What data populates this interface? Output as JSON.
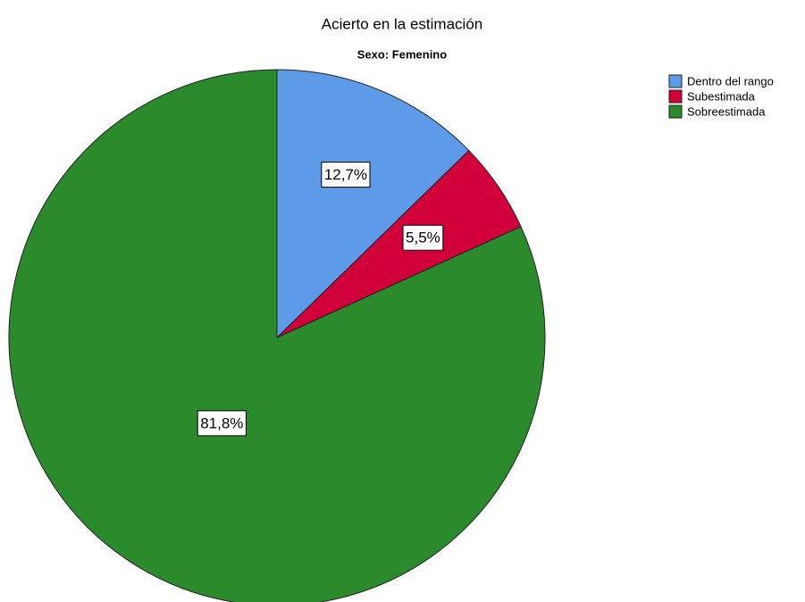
{
  "chart_data": {
    "type": "pie",
    "title": "Acierto en la estimación",
    "subtitle": "Sexo: Femenino",
    "categories": [
      "Dentro del rango",
      "Subestimada",
      "Sobreestimada"
    ],
    "values": [
      12.7,
      5.5,
      81.8
    ],
    "value_labels": [
      "12,7%",
      "5,5%",
      "81,8%"
    ],
    "colors": [
      "#5d9ae8",
      "#d2003a",
      "#2b8a2b"
    ],
    "legend": "top-right"
  }
}
